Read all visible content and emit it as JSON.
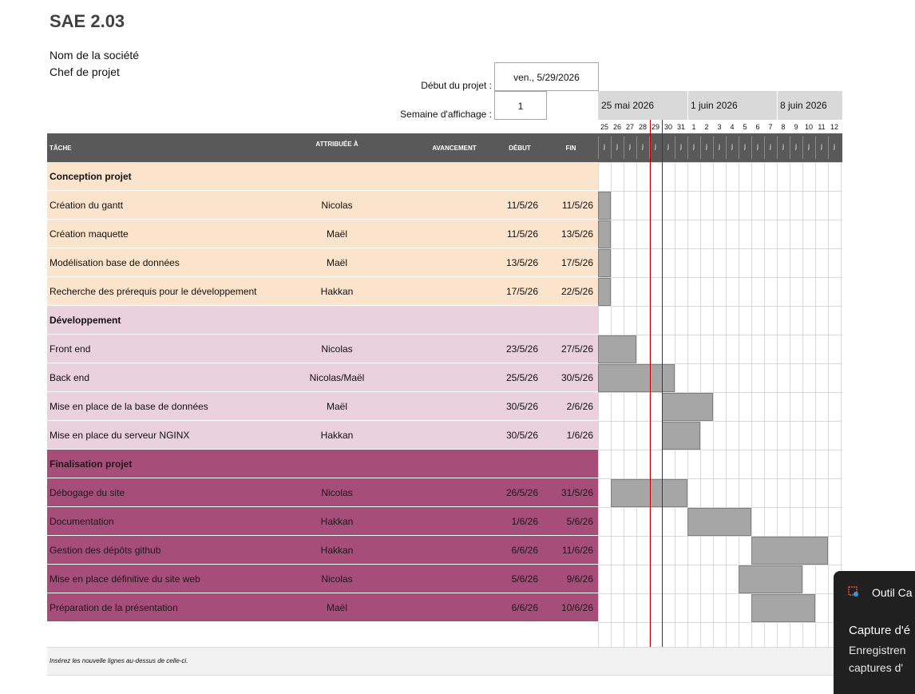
{
  "doc": {
    "title": "SAE 2.03",
    "company": "Nom de la société",
    "manager": "Chef de projet"
  },
  "settings": {
    "start_label": "Début du projet :",
    "start_value": "ven., 5/29/2026",
    "week_label": "Semaine d'affichage :",
    "week_value": "1"
  },
  "timeline": {
    "weeks": [
      "25 mai 2026",
      "1 juin 2026",
      "8 juin 2026"
    ],
    "days": [
      "25",
      "26",
      "27",
      "28",
      "29",
      "30",
      "31",
      "1",
      "2",
      "3",
      "4",
      "5",
      "6",
      "7",
      "8",
      "9",
      "10",
      "11",
      "12"
    ],
    "day_letter": "j"
  },
  "columns": {
    "task": "TÂCHE",
    "assigned": "ATTRIBUÉE À",
    "progress": "AVANCEMENT",
    "start": "DÉBUT",
    "end": "FIN"
  },
  "rows": [
    {
      "type": "phase",
      "task": "Conception projet",
      "assigned": "",
      "start": "",
      "end": "",
      "color": "#fce4cc"
    },
    {
      "type": "task",
      "task": "Création du gantt",
      "assigned": "Nicolas",
      "start": "11/5/26",
      "end": "11/5/26",
      "color": "#fce4cc"
    },
    {
      "type": "task",
      "task": "Création maquette",
      "assigned": "Maël",
      "start": "11/5/26",
      "end": "13/5/26",
      "color": "#fce4cc"
    },
    {
      "type": "task",
      "task": "Modélisation base de données",
      "assigned": "Maël",
      "start": "13/5/26",
      "end": "17/5/26",
      "color": "#fce4cc"
    },
    {
      "type": "task",
      "task": "Recherche des prérequis pour le développement",
      "assigned": "Hakkan",
      "start": "17/5/26",
      "end": "22/5/26",
      "color": "#fce4cc"
    },
    {
      "type": "phase",
      "task": "Développement",
      "assigned": "",
      "start": "",
      "end": "",
      "color": "#ead1dc"
    },
    {
      "type": "task",
      "task": "Front end",
      "assigned": "Nicolas",
      "start": "23/5/26",
      "end": "27/5/26",
      "color": "#ead1dc"
    },
    {
      "type": "task",
      "task": "Back end",
      "assigned": "Nicolas/Maël",
      "start": "25/5/26",
      "end": "30/5/26",
      "color": "#ead1dc"
    },
    {
      "type": "task",
      "task": "Mise en place de la base de données",
      "assigned": "Maël",
      "start": "30/5/26",
      "end": "2/6/26",
      "color": "#ead1dc"
    },
    {
      "type": "task",
      "task": "Mise en place du serveur NGINX",
      "assigned": "Hakkan",
      "start": "30/5/26",
      "end": "1/6/26",
      "color": "#ead1dc"
    },
    {
      "type": "phase",
      "task": "Finalisation projet",
      "assigned": "",
      "start": "",
      "end": "",
      "color": "#a64d79"
    },
    {
      "type": "task",
      "task": "Débogage du site",
      "assigned": "Nicolas",
      "start": "26/5/26",
      "end": "31/5/26",
      "color": "#a64d79"
    },
    {
      "type": "task",
      "task": "Documentation",
      "assigned": "Hakkan",
      "start": "1/6/26",
      "end": "5/6/26",
      "color": "#a64d79"
    },
    {
      "type": "task",
      "task": "Gestion des dépôts github",
      "assigned": "Hakkan",
      "start": "6/6/26",
      "end": "11/6/26",
      "color": "#a64d79"
    },
    {
      "type": "task",
      "task": "Mise en place définitive du site web",
      "assigned": "Nicolas",
      "start": "5/6/26",
      "end": "9/6/26",
      "color": "#a64d79"
    },
    {
      "type": "task",
      "task": "Préparation de la présentation",
      "assigned": "Maël",
      "start": "6/6/26",
      "end": "10/6/26",
      "color": "#a64d79"
    }
  ],
  "footer": {
    "note": "Insérez les nouvelle lignes au-dessus de celle-ci."
  },
  "toast": {
    "app": "Outil Ca",
    "title": "Capture d'é",
    "line1": "Enregistren",
    "line2": "captures d'"
  },
  "colors": {
    "header_bg": "#595959",
    "bar": "#a6a6a6",
    "today_line": "#c00000"
  }
}
